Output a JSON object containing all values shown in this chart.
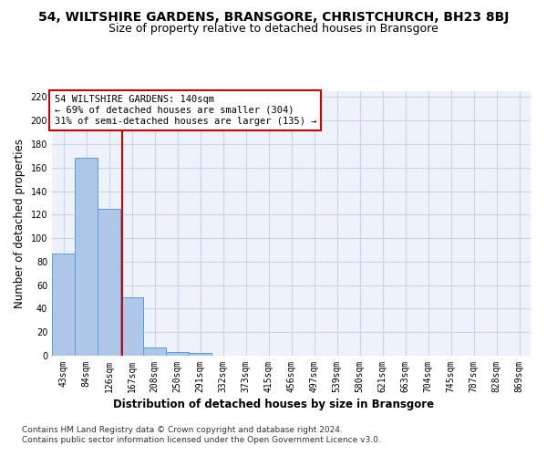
{
  "title": "54, WILTSHIRE GARDENS, BRANSGORE, CHRISTCHURCH, BH23 8BJ",
  "subtitle": "Size of property relative to detached houses in Bransgore",
  "xlabel_bottom": "Distribution of detached houses by size in Bransgore",
  "ylabel": "Number of detached properties",
  "categories": [
    "43sqm",
    "84sqm",
    "126sqm",
    "167sqm",
    "208sqm",
    "250sqm",
    "291sqm",
    "332sqm",
    "373sqm",
    "415sqm",
    "456sqm",
    "497sqm",
    "539sqm",
    "580sqm",
    "621sqm",
    "663sqm",
    "704sqm",
    "745sqm",
    "787sqm",
    "828sqm",
    "869sqm"
  ],
  "values": [
    87,
    168,
    125,
    50,
    7,
    3,
    2,
    0,
    0,
    0,
    0,
    0,
    0,
    0,
    0,
    0,
    0,
    0,
    0,
    0,
    0
  ],
  "bar_color": "#aec6e8",
  "bar_edge_color": "#5b9bd5",
  "grid_color": "#c8d4e8",
  "background_color": "#eef2fb",
  "vline_x": 2.57,
  "vline_color": "#cc0000",
  "annotation_text": "54 WILTSHIRE GARDENS: 140sqm\n← 69% of detached houses are smaller (304)\n31% of semi-detached houses are larger (135) →",
  "annotation_box_color": "#ffffff",
  "annotation_box_edge": "#cc0000",
  "ylim": [
    0,
    225
  ],
  "yticks": [
    0,
    20,
    40,
    60,
    80,
    100,
    120,
    140,
    160,
    180,
    200,
    220
  ],
  "footer": "Contains HM Land Registry data © Crown copyright and database right 2024.\nContains public sector information licensed under the Open Government Licence v3.0.",
  "title_fontsize": 10,
  "subtitle_fontsize": 9,
  "label_fontsize": 8.5,
  "tick_fontsize": 7,
  "annot_fontsize": 7.5,
  "footer_fontsize": 6.5
}
